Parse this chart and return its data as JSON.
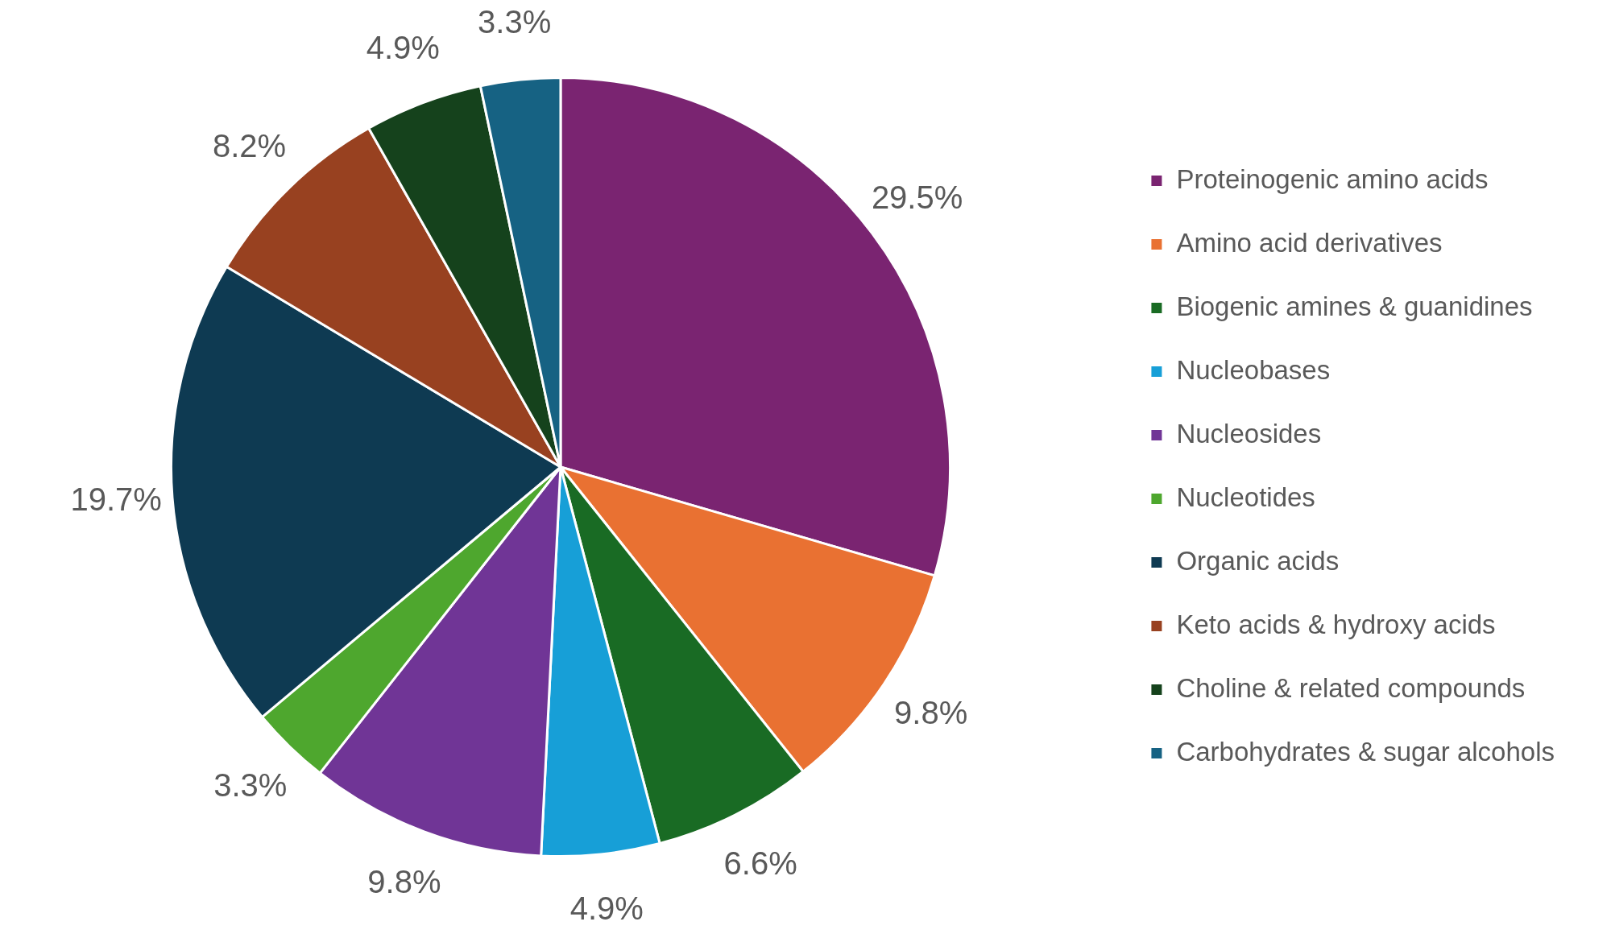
{
  "chart_data": {
    "type": "pie",
    "categories": [
      "Proteinogenic amino acids",
      "Amino acid derivatives",
      "Biogenic amines & guanidines",
      "Nucleobases",
      "Nucleosides",
      "Nucleotides",
      "Organic acids",
      "Keto acids & hydroxy acids",
      "Choline & related compounds",
      "Carbohydrates & sugar alcohols"
    ],
    "values": [
      29.5,
      9.8,
      6.6,
      4.9,
      9.8,
      3.3,
      19.7,
      8.2,
      4.9,
      3.3
    ],
    "value_labels": [
      "29.5%",
      "9.8%",
      "6.6%",
      "4.9%",
      "9.8%",
      "3.3%",
      "19.7%",
      "8.2%",
      "4.9%",
      "3.3%"
    ],
    "colors": [
      "#7a2471",
      "#e97132",
      "#196b24",
      "#179fd7",
      "#703596",
      "#4ea72e",
      "#0e3a52",
      "#984120",
      "#15421c",
      "#166283"
    ],
    "legend": "right"
  }
}
